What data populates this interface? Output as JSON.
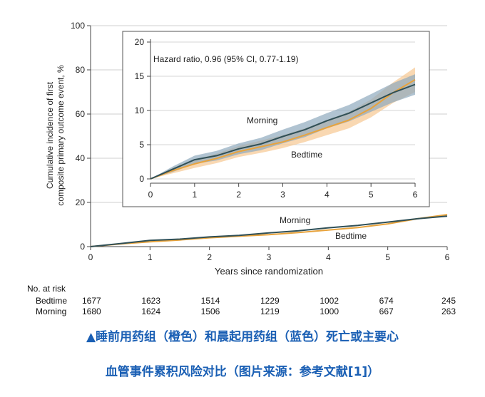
{
  "chart_data": [
    {
      "type": "line",
      "xlabel": "Years since randomization",
      "ylabel_lines": [
        "Cumulative incidence of first",
        "composite primary outcome event, %"
      ],
      "xlim": [
        0,
        6
      ],
      "ylim": [
        0,
        100
      ],
      "x_ticks": [
        "0",
        "1",
        "2",
        "3",
        "4",
        "5",
        "6"
      ],
      "y_ticks": [
        "0",
        "20",
        "40",
        "60",
        "80",
        "100"
      ],
      "grid": true,
      "series_label_placement": "inline",
      "series": [
        {
          "name": "Morning",
          "color": "#2f4f56",
          "x": [
            0,
            0.5,
            1,
            1.5,
            2,
            2.5,
            3,
            3.5,
            4,
            4.5,
            5,
            5.5,
            6
          ],
          "y": [
            0,
            1.4,
            2.8,
            3.4,
            4.4,
            5.1,
            6.2,
            7.2,
            8.5,
            9.6,
            11.1,
            12.6,
            13.8
          ]
        },
        {
          "name": "Bedtime",
          "color": "#e8a33c",
          "x": [
            0,
            0.5,
            1,
            1.5,
            2,
            2.5,
            3,
            3.5,
            4,
            4.5,
            5,
            5.5,
            6
          ],
          "y": [
            0,
            1.2,
            2.2,
            3.0,
            4.0,
            4.7,
            5.4,
            6.4,
            7.5,
            8.6,
            10.3,
            12.6,
            14.5
          ]
        }
      ]
    },
    {
      "type": "area",
      "annotation": "Hazard ratio, 0.96 (95% CI, 0.77-1.19)",
      "xlim": [
        0,
        6
      ],
      "ylim": [
        0,
        20
      ],
      "x_ticks": [
        "0",
        "1",
        "2",
        "3",
        "4",
        "5",
        "6"
      ],
      "y_ticks": [
        "0",
        "5",
        "10",
        "15",
        "20"
      ],
      "grid": true,
      "series": [
        {
          "name": "Morning",
          "color": "#2f4f56",
          "band_color": "#8fa9be",
          "x": [
            0,
            0.5,
            1,
            1.5,
            2,
            2.5,
            3,
            3.5,
            4,
            4.5,
            5,
            5.5,
            6
          ],
          "y": [
            0,
            1.4,
            2.8,
            3.4,
            4.4,
            5.1,
            6.2,
            7.2,
            8.5,
            9.6,
            11.1,
            12.6,
            13.8
          ],
          "lower": [
            0,
            1.0,
            2.2,
            2.7,
            3.6,
            4.2,
            5.2,
            6.1,
            7.4,
            8.4,
            9.8,
            11.2,
            12.3
          ],
          "upper": [
            0,
            1.8,
            3.4,
            4.1,
            5.2,
            6.0,
            7.2,
            8.3,
            9.6,
            10.8,
            12.4,
            14.0,
            15.3
          ]
        },
        {
          "name": "Bedtime",
          "color": "#e8a33c",
          "band_color": "#f6c891",
          "x": [
            0,
            0.5,
            1,
            1.5,
            2,
            2.5,
            3,
            3.5,
            4,
            4.5,
            5,
            5.5,
            6
          ],
          "y": [
            0,
            1.2,
            2.2,
            3.0,
            4.0,
            4.7,
            5.4,
            6.4,
            7.5,
            8.6,
            10.3,
            12.6,
            14.5
          ],
          "lower": [
            0,
            0.8,
            1.6,
            2.3,
            3.2,
            3.8,
            4.5,
            5.4,
            6.4,
            7.4,
            9.0,
            11.1,
            12.7
          ],
          "upper": [
            0,
            1.6,
            2.8,
            3.7,
            4.8,
            5.6,
            6.4,
            7.4,
            8.6,
            9.8,
            11.6,
            14.1,
            16.3
          ]
        }
      ]
    }
  ],
  "risk_table": {
    "header": "No. at risk",
    "rows": [
      {
        "label": "Bedtime",
        "values": [
          "1677",
          "1623",
          "1514",
          "1229",
          "1002",
          "674",
          "245"
        ]
      },
      {
        "label": "Morning",
        "values": [
          "1680",
          "1624",
          "1506",
          "1219",
          "1000",
          "667",
          "263"
        ]
      }
    ]
  },
  "caption": {
    "line1": "▲睡前用药组（橙色）和晨起用药组（蓝色）死亡或主要心",
    "line2": "血管事件累积风险对比（图片来源：参考文献[1]）"
  }
}
